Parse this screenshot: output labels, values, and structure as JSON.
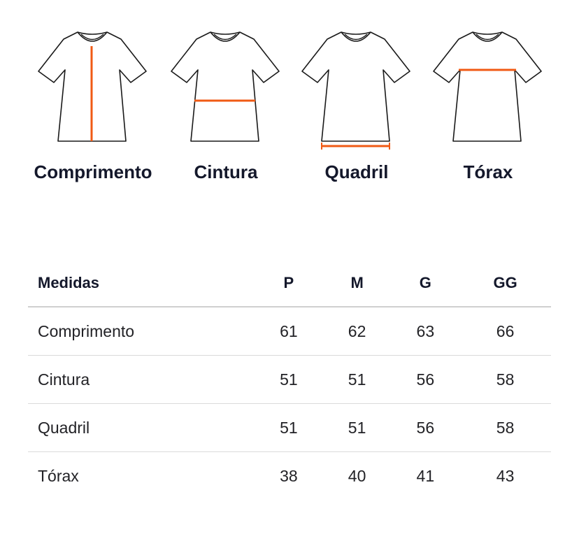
{
  "colors": {
    "accent": "#f05a14",
    "outline": "#1a1a1a",
    "divider": "#d5d5d5"
  },
  "diagrams": [
    {
      "label": "Comprimento",
      "measure": "comprimento"
    },
    {
      "label": "Cintura",
      "measure": "cintura"
    },
    {
      "label": "Quadril",
      "measure": "quadril"
    },
    {
      "label": "Tórax",
      "measure": "torax"
    }
  ],
  "table": {
    "headers": [
      "Medidas",
      "P",
      "M",
      "G",
      "GG"
    ],
    "rows": [
      {
        "name": "Comprimento",
        "values": [
          "61",
          "62",
          "63",
          "66"
        ]
      },
      {
        "name": "Cintura",
        "values": [
          "51",
          "51",
          "56",
          "58"
        ]
      },
      {
        "name": "Quadril",
        "values": [
          "51",
          "51",
          "56",
          "58"
        ]
      },
      {
        "name": "Tórax",
        "values": [
          "38",
          "40",
          "41",
          "43"
        ]
      }
    ]
  }
}
